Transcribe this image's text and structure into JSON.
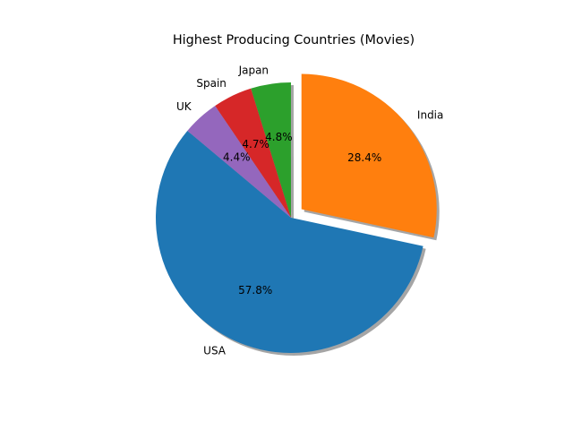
{
  "chart_data": {
    "type": "pie",
    "title": "Highest Producing Countries (Movies)",
    "categories": [
      "USA",
      "India",
      "Japan",
      "Spain",
      "UK"
    ],
    "values": [
      57.8,
      28.4,
      4.8,
      4.7,
      4.4
    ],
    "percent_labels": [
      "57.8%",
      "28.4%",
      "4.8%",
      "4.7%",
      "4.4%"
    ],
    "colors": [
      "#1f77b4",
      "#ff7f0e",
      "#2ca02c",
      "#d62728",
      "#9467bd"
    ],
    "explode": [
      0,
      0.1,
      0,
      0,
      0
    ],
    "start_angle_deg": 140,
    "shadow": true,
    "legend": "none"
  }
}
